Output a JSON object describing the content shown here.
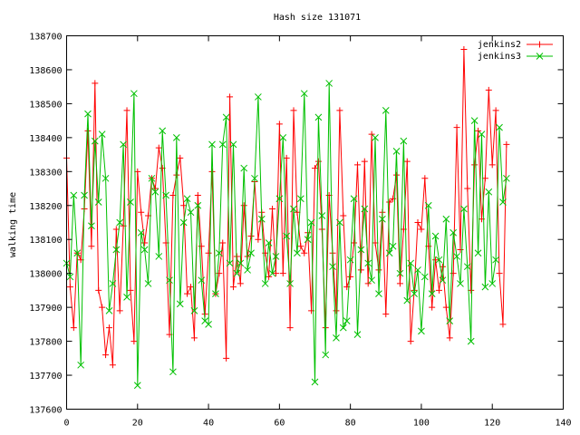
{
  "chart_data": {
    "type": "line",
    "title": "Hash size 131071",
    "xlabel": "",
    "ylabel": "walking time",
    "xlim": [
      0,
      140
    ],
    "ylim": [
      137600,
      138700
    ],
    "x_ticks": [
      0,
      20,
      40,
      60,
      80,
      100,
      120,
      140
    ],
    "y_ticks": [
      137600,
      137700,
      137800,
      137900,
      138000,
      138100,
      138200,
      138300,
      138400,
      138500,
      138600,
      138700
    ],
    "legend_position": "top-right",
    "grid": false,
    "series": [
      {
        "name": "jenkins2",
        "color": "#ff0000",
        "marker": "plus",
        "values": [
          138340,
          137960,
          137840,
          138060,
          138040,
          138190,
          138420,
          138080,
          138560,
          137950,
          137900,
          137760,
          137840,
          137730,
          138130,
          137890,
          138140,
          138480,
          137950,
          137800,
          138300,
          138180,
          138090,
          138170,
          138280,
          138250,
          138370,
          138310,
          138090,
          137820,
          138230,
          138290,
          138340,
          138200,
          137940,
          137960,
          137810,
          138230,
          138080,
          137880,
          138060,
          138300,
          137940,
          138000,
          138090,
          137750,
          138520,
          137960,
          138050,
          137970,
          138200,
          138050,
          138110,
          138270,
          138100,
          138180,
          138060,
          137990,
          138190,
          138000,
          138440,
          138000,
          138340,
          137840,
          138480,
          138180,
          138080,
          138060,
          138120,
          137890,
          138310,
          138330,
          138130,
          137840,
          138230,
          138060,
          137890,
          138480,
          138170,
          137960,
          137990,
          138090,
          138320,
          138010,
          138330,
          137970,
          138410,
          138090,
          138010,
          138180,
          137880,
          138210,
          138220,
          138290,
          137970,
          138130,
          138330,
          137800,
          137950,
          138150,
          138130,
          138280,
          138080,
          137900,
          138040,
          137950,
          138020,
          137900,
          137810,
          138000,
          138430,
          138070,
          138660,
          138250,
          137950,
          138320,
          138420,
          138160,
          138280,
          138540,
          138320,
          138480,
          138000,
          137850,
          138380
        ]
      },
      {
        "name": "jenkins3",
        "color": "#00c000",
        "marker": "cross",
        "values": [
          138030,
          137990,
          138230,
          138060,
          137730,
          138230,
          138470,
          138140,
          138390,
          138210,
          138410,
          138280,
          137890,
          137970,
          138070,
          138150,
          138380,
          137930,
          138210,
          138530,
          137670,
          138120,
          138070,
          137970,
          138280,
          138240,
          138050,
          138420,
          138230,
          137980,
          137710,
          138400,
          137910,
          138150,
          138220,
          138180,
          137890,
          138200,
          137980,
          137860,
          137850,
          138380,
          137940,
          138060,
          138380,
          138460,
          138030,
          138380,
          138000,
          138030,
          138310,
          138010,
          138060,
          138280,
          138520,
          138160,
          137970,
          138090,
          138000,
          138050,
          138220,
          138400,
          138110,
          137970,
          138190,
          138060,
          138220,
          138530,
          138100,
          138150,
          137680,
          138460,
          138170,
          137760,
          138560,
          138020,
          137810,
          138150,
          137840,
          137860,
          138040,
          138220,
          137820,
          138070,
          138190,
          138030,
          137980,
          138400,
          137940,
          138160,
          138480,
          138060,
          138080,
          138360,
          138000,
          138390,
          137920,
          138030,
          137940,
          138010,
          137830,
          137990,
          138200,
          137940,
          138110,
          138040,
          137980,
          138160,
          137860,
          138120,
          138050,
          137970,
          138190,
          138020,
          137800,
          138450,
          138060,
          138410,
          137960,
          138240,
          137970,
          138040,
          138430,
          138210,
          138280
        ]
      }
    ]
  }
}
